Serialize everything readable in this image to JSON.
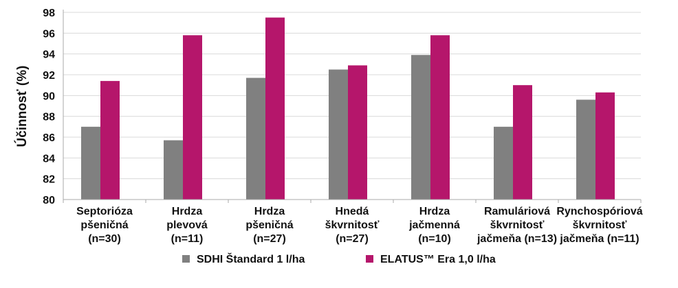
{
  "chart_data": {
    "type": "bar",
    "ylabel": "Účinnosť (%)",
    "ylim": [
      80,
      98
    ],
    "yticks": [
      80,
      82,
      84,
      86,
      88,
      90,
      92,
      94,
      96,
      98
    ],
    "grid": true,
    "legend_position": "bottom",
    "categories": [
      [
        "Septorióza",
        "pšeničná",
        "(n=30)"
      ],
      [
        "Hrdza",
        "plevová",
        "(n=11)"
      ],
      [
        "Hrdza",
        "pšeničná",
        "(n=27)"
      ],
      [
        "Hnedá",
        "škvrnitosť",
        "(n=27)"
      ],
      [
        "Hrdza",
        "jačmenná",
        "(n=10)"
      ],
      [
        "Ramuláriová",
        "škvrnitosť",
        "jačmeňa (n=13)"
      ],
      [
        "Rynchospóriová",
        "škvrnitosť",
        "jačmeňa (n=11)"
      ]
    ],
    "series": [
      {
        "name": "SDHI Štandard 1 l/ha",
        "color": "#808080",
        "values": [
          87.0,
          85.7,
          91.7,
          92.5,
          93.9,
          87.0,
          89.6
        ]
      },
      {
        "name": "ELATUS™ Era 1,0 l/ha",
        "color": "#b5166b",
        "values": [
          91.4,
          95.8,
          97.5,
          92.9,
          95.8,
          91.0,
          90.3
        ]
      }
    ]
  }
}
